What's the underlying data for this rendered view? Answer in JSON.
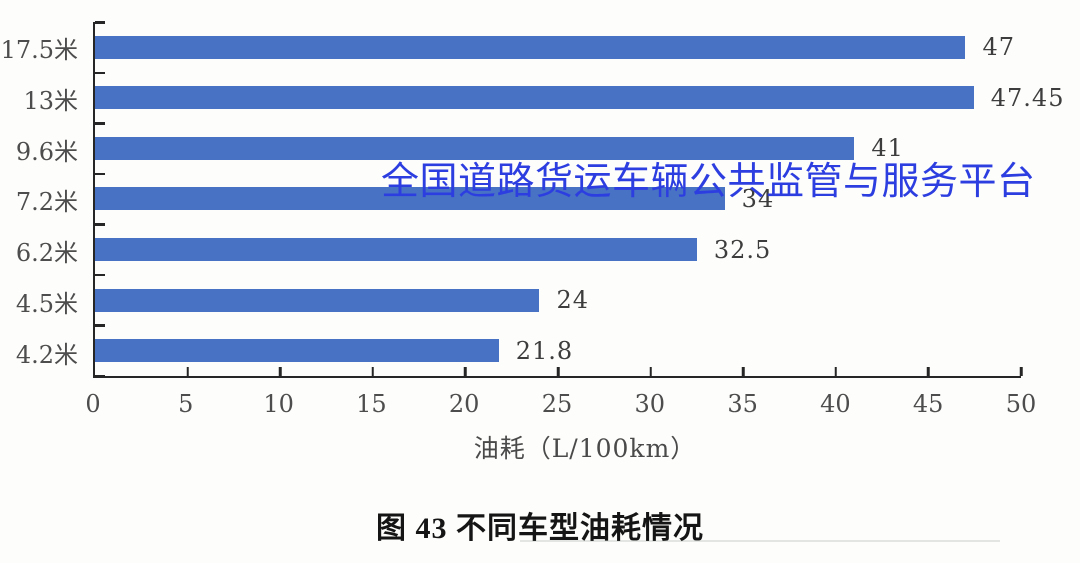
{
  "chart_data": {
    "type": "bar",
    "orientation": "horizontal",
    "title": "",
    "categories": [
      "17.5米",
      "13米",
      "9.6米",
      "7.2米",
      "6.2米",
      "4.5米",
      "4.2米"
    ],
    "values": [
      47,
      47.45,
      41,
      34,
      32.5,
      24,
      21.8
    ],
    "value_labels": [
      "47",
      "47.45",
      "41",
      "34",
      "32.5",
      "24",
      "21.8"
    ],
    "xlabel": "油耗（L/100km）",
    "ylabel": "",
    "xlim": [
      0,
      50
    ],
    "x_ticks": [
      0,
      5,
      10,
      15,
      20,
      25,
      30,
      35,
      40,
      45,
      50
    ],
    "grid": false,
    "legend": "none",
    "bar_color": "#4872C4",
    "axis_color": "#262626"
  },
  "watermark": {
    "text": "全国道路货运车辆公共监管与服务平台",
    "color": "#2D3EE0"
  },
  "caption": "图 43 不同车型油耗情况"
}
